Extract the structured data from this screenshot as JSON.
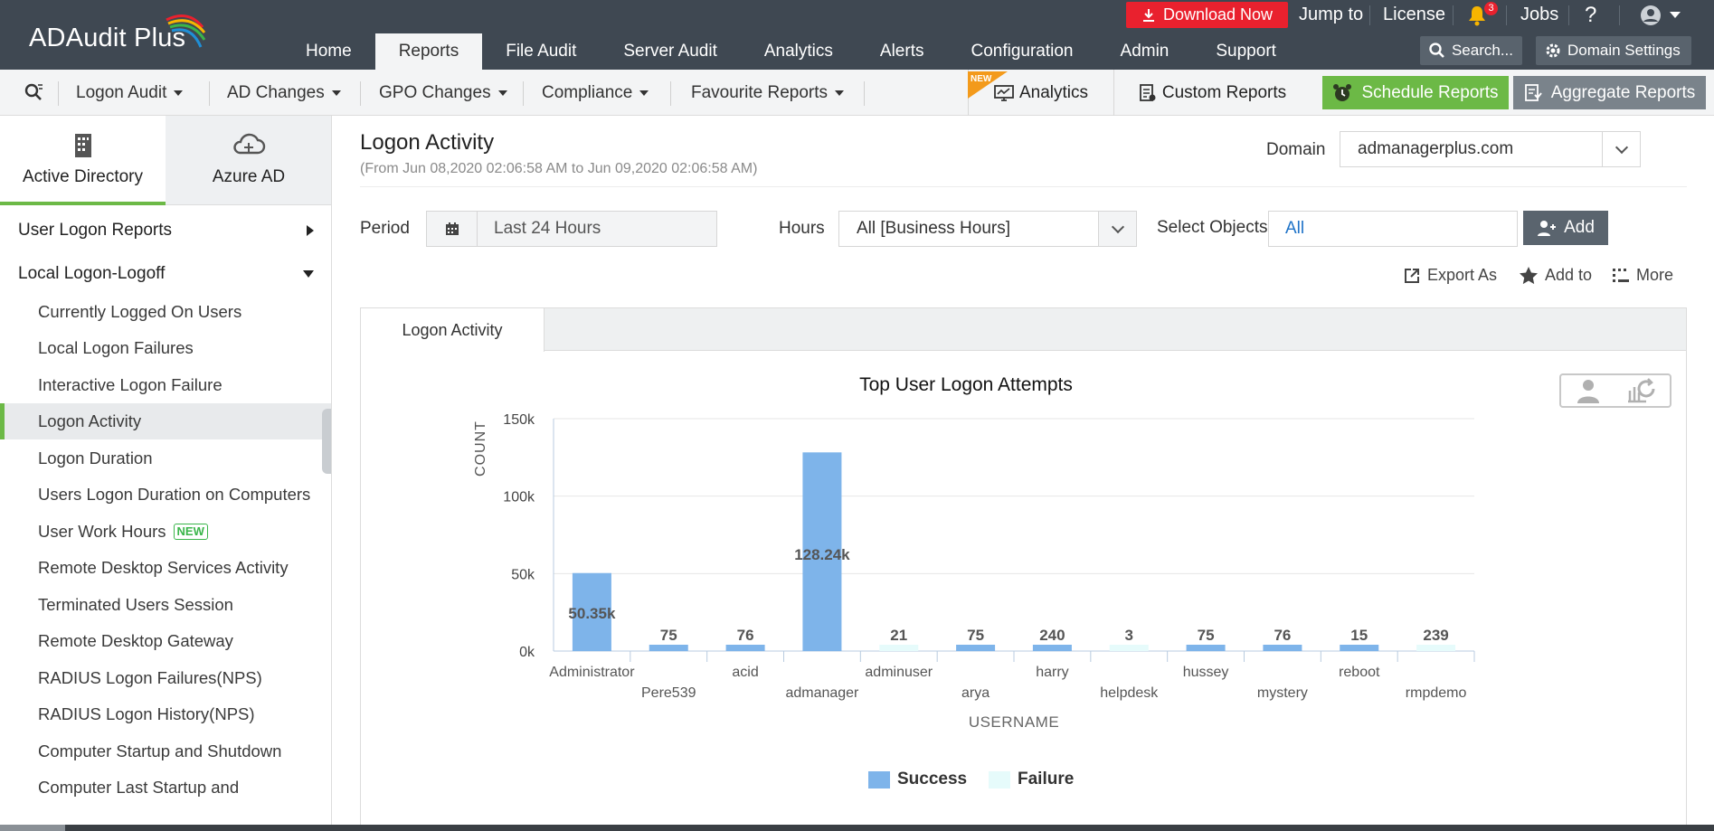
{
  "app": {
    "name": "ADAudit Plus"
  },
  "header": {
    "download_label": "Download Now",
    "jump_to": "Jump to",
    "license": "License",
    "notification_count": "3",
    "jobs": "Jobs",
    "help": "?",
    "search_label": "Search...",
    "domain_settings": "Domain Settings",
    "tabs": [
      {
        "label": "Home"
      },
      {
        "label": "Reports",
        "active": true
      },
      {
        "label": "File Audit"
      },
      {
        "label": "Server Audit"
      },
      {
        "label": "Analytics"
      },
      {
        "label": "Alerts"
      },
      {
        "label": "Configuration"
      },
      {
        "label": "Admin"
      },
      {
        "label": "Support"
      }
    ]
  },
  "subnav": {
    "items": [
      {
        "label": "Logon Audit"
      },
      {
        "label": "AD Changes"
      },
      {
        "label": "GPO Changes"
      },
      {
        "label": "Compliance"
      },
      {
        "label": "Favourite Reports"
      }
    ],
    "new_ribbon": "NEW",
    "analytics": "Analytics",
    "custom_reports": "Custom Reports",
    "schedule_reports": "Schedule Reports",
    "aggregate_reports": "Aggregate Reports"
  },
  "sidebar": {
    "tabs": [
      {
        "label": "Active Directory",
        "active": true
      },
      {
        "label": "Azure AD"
      }
    ],
    "groups": [
      {
        "label": "User Logon Reports",
        "expanded": false
      },
      {
        "label": "Local Logon-Logoff",
        "expanded": true
      }
    ],
    "items": [
      {
        "label": "Currently Logged On Users"
      },
      {
        "label": "Local Logon Failures"
      },
      {
        "label": "Interactive Logon Failure"
      },
      {
        "label": "Logon Activity",
        "active": true
      },
      {
        "label": "Logon Duration"
      },
      {
        "label": "Users Logon Duration on Computers"
      },
      {
        "label": "User Work Hours",
        "badge": "NEW"
      },
      {
        "label": "Remote Desktop Services Activity"
      },
      {
        "label": "Terminated Users Session"
      },
      {
        "label": "Remote Desktop Gateway"
      },
      {
        "label": "RADIUS Logon Failures(NPS)"
      },
      {
        "label": "RADIUS Logon History(NPS)"
      },
      {
        "label": "Computer Startup and Shutdown"
      },
      {
        "label": "Computer Last Startup and"
      }
    ]
  },
  "report": {
    "title": "Logon Activity",
    "date_range": "(From Jun 08,2020 02:06:58 AM to Jun 09,2020 02:06:58 AM)",
    "domain_label": "Domain",
    "domain_value": "admanagerplus.com",
    "period_label": "Period",
    "period_value": "Last 24 Hours",
    "hours_label": "Hours",
    "hours_value": "All [Business Hours]",
    "objects_label": "Select Objects",
    "objects_value": "All",
    "add_label": "Add",
    "export_label": "Export As",
    "addto_label": "Add to",
    "more_label": "More",
    "tab_label": "Logon Activity"
  },
  "colors": {
    "header_bg": "#3f4852",
    "accent_green": "#6cb946",
    "download_red": "#e9212e",
    "success": "#7eb4ea",
    "failure": "#e6fbfb"
  },
  "chart_data": {
    "type": "bar",
    "title": "Top User Logon Attempts",
    "xlabel": "USERNAME",
    "ylabel": "COUNT",
    "ylim": [
      0,
      150000
    ],
    "yticks": [
      "0k",
      "50k",
      "100k",
      "150k"
    ],
    "categories": [
      "Administrator",
      "Pere539",
      "acid",
      "admanager",
      "adminuser",
      "arya",
      "harry",
      "helpdesk",
      "hussey",
      "mystery",
      "reboot",
      "rmpdemo"
    ],
    "series": [
      {
        "name": "Success",
        "values": [
          50350,
          75,
          76,
          128240,
          0,
          75,
          240,
          0,
          75,
          76,
          15,
          0
        ]
      },
      {
        "name": "Failure",
        "values": [
          0,
          0,
          0,
          0,
          21,
          0,
          0,
          3,
          0,
          0,
          0,
          239
        ]
      }
    ],
    "labels": [
      "50.35k",
      "75",
      "76",
      "128.24k",
      "21",
      "75",
      "240",
      "3",
      "75",
      "76",
      "15",
      "239"
    ],
    "legend": "bottom-center",
    "grid": true
  }
}
